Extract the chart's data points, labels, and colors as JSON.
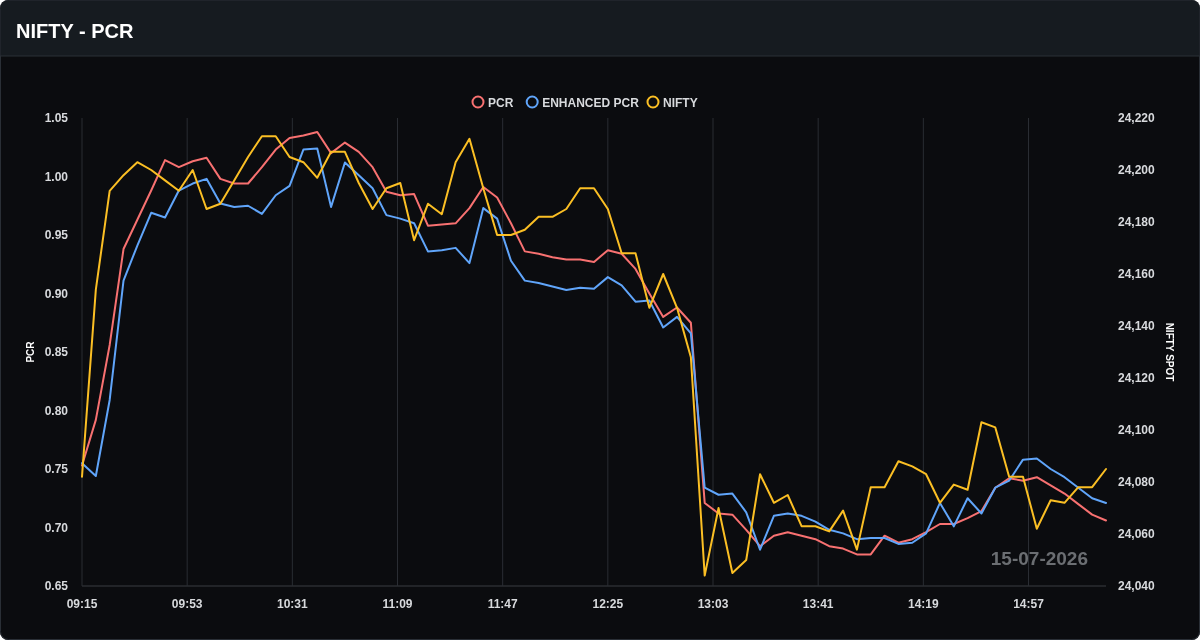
{
  "chart_data": {
    "type": "line",
    "title": "NIFTY - PCR",
    "ylabel": "PCR",
    "y2label": "NIFTY SPOT",
    "annotations": [
      "15-07-2026"
    ],
    "x": [
      9.25,
      9.3333,
      9.4167,
      9.5,
      9.5833,
      9.6667,
      9.75,
      9.8333,
      9.9167,
      10,
      10.0833,
      10.1667,
      10.25,
      10.3333,
      10.4167,
      10.5,
      10.5833,
      10.6667,
      10.75,
      10.8333,
      10.9167,
      11,
      11.0833,
      11.1667,
      11.25,
      11.3333,
      11.4167,
      11.5,
      11.5833,
      11.6667,
      11.75,
      11.8333,
      11.9167,
      12,
      12.0833,
      12.1667,
      12.25,
      12.3333,
      12.4167,
      12.5,
      12.5833,
      12.6667,
      12.75,
      12.8333,
      12.9167,
      13,
      13.0833,
      13.1667,
      13.25,
      13.3333,
      13.4167,
      13.5,
      13.5833,
      13.6667,
      13.75,
      13.8333,
      13.9167,
      14,
      14.0833,
      14.1667,
      14.25,
      14.3333,
      14.4167,
      14.5,
      14.5833,
      14.6667,
      14.75,
      14.8333,
      14.9167,
      15,
      15.0833,
      15.1667,
      15.25,
      15.3333,
      15.4167
    ],
    "series": [
      {
        "name": "PCR",
        "color": "#f87171",
        "values": [
          0.753,
          0.792,
          0.856,
          0.938,
          0.963,
          0.988,
          1.014,
          1.008,
          1.013,
          1.016,
          0.998,
          0.994,
          0.994,
          1.008,
          1.023,
          1.033,
          1.035,
          1.038,
          1.02,
          1.029,
          1.021,
          1.008,
          0.987,
          0.984,
          0.985,
          0.958,
          0.959,
          0.96,
          0.973,
          0.991,
          0.982,
          0.96,
          0.936,
          0.934,
          0.931,
          0.929,
          0.929,
          0.927,
          0.937,
          0.934,
          0.921,
          0.9,
          0.88,
          0.888,
          0.875,
          0.721,
          0.712,
          0.711,
          0.698,
          0.684,
          0.693,
          0.696,
          0.693,
          0.69,
          0.684,
          0.682,
          0.677,
          0.677,
          0.693,
          0.687,
          0.69,
          0.696,
          0.703,
          0.703,
          0.708,
          0.714,
          0.734,
          0.742,
          0.74,
          0.743,
          0.736,
          0.729,
          0.72,
          0.711,
          0.706
        ]
      },
      {
        "name": "ENHANCED PCR",
        "color": "#60a5fa",
        "values": [
          0.755,
          0.744,
          0.809,
          0.911,
          0.941,
          0.969,
          0.965,
          0.988,
          0.994,
          0.998,
          0.977,
          0.974,
          0.975,
          0.968,
          0.984,
          0.992,
          1.023,
          1.024,
          0.974,
          1.012,
          1.001,
          0.99,
          0.967,
          0.964,
          0.96,
          0.936,
          0.937,
          0.939,
          0.926,
          0.973,
          0.964,
          0.928,
          0.911,
          0.909,
          0.906,
          0.903,
          0.905,
          0.904,
          0.914,
          0.907,
          0.893,
          0.894,
          0.871,
          0.88,
          0.866,
          0.734,
          0.728,
          0.729,
          0.713,
          0.681,
          0.71,
          0.712,
          0.71,
          0.705,
          0.698,
          0.695,
          0.69,
          0.691,
          0.691,
          0.686,
          0.687,
          0.695,
          0.721,
          0.701,
          0.725,
          0.712,
          0.734,
          0.74,
          0.758,
          0.759,
          0.75,
          0.743,
          0.734,
          0.725,
          0.721
        ]
      },
      {
        "name": "NIFTY",
        "color": "#fbbf24",
        "axis": "y2",
        "values": [
          24082,
          24154,
          24192,
          24198,
          24203,
          24200,
          24196,
          24192,
          24200,
          24185,
          24187,
          24196,
          24205,
          24213,
          24213,
          24205,
          24203,
          24197,
          24207,
          24207,
          24195,
          24185,
          24193,
          24195,
          24173,
          24187,
          24183,
          24203,
          24212,
          24193,
          24175,
          24175,
          24177,
          24182,
          24182,
          24185,
          24193,
          24193,
          24185,
          24168,
          24168,
          24147,
          24160,
          24147,
          24128,
          24044,
          24070,
          24045,
          24050,
          24083,
          24072,
          24075,
          24063,
          24063,
          24061,
          24069,
          24054,
          24078,
          24078,
          24088,
          24086,
          24083,
          24072,
          24079,
          24077,
          24103,
          24101,
          24082,
          24082,
          24062,
          24073,
          24072,
          24078,
          24078,
          24085
        ]
      }
    ],
    "xlim": [
      9.25,
      15.4167
    ],
    "xticks": [
      {
        "value": 9.25,
        "label": "09:15"
      },
      {
        "value": 9.8833,
        "label": "09:53"
      },
      {
        "value": 10.5167,
        "label": "10:31"
      },
      {
        "value": 11.15,
        "label": "11:09"
      },
      {
        "value": 11.7833,
        "label": "11:47"
      },
      {
        "value": 12.4167,
        "label": "12:25"
      },
      {
        "value": 13.05,
        "label": "13:03"
      },
      {
        "value": 13.6833,
        "label": "13:41"
      },
      {
        "value": 14.3167,
        "label": "14:19"
      },
      {
        "value": 14.95,
        "label": "14:57"
      }
    ],
    "ylim": [
      0.65,
      1.05
    ],
    "yticks": [
      {
        "value": 0.65,
        "label": "0.65"
      },
      {
        "value": 0.7,
        "label": "0.70"
      },
      {
        "value": 0.75,
        "label": "0.75"
      },
      {
        "value": 0.8,
        "label": "0.80"
      },
      {
        "value": 0.85,
        "label": "0.85"
      },
      {
        "value": 0.9,
        "label": "0.90"
      },
      {
        "value": 0.95,
        "label": "0.95"
      },
      {
        "value": 1,
        "label": "1.00"
      },
      {
        "value": 1.05,
        "label": "1.05"
      }
    ],
    "y2lim": [
      24040,
      24220
    ],
    "y2ticks": [
      {
        "value": 24040,
        "label": "24,040"
      },
      {
        "value": 24060,
        "label": "24,060"
      },
      {
        "value": 24080,
        "label": "24,080"
      },
      {
        "value": 24100,
        "label": "24,100"
      },
      {
        "value": 24120,
        "label": "24,120"
      },
      {
        "value": 24140,
        "label": "24,140"
      },
      {
        "value": 24160,
        "label": "24,160"
      },
      {
        "value": 24180,
        "label": "24,180"
      },
      {
        "value": 24200,
        "label": "24,200"
      },
      {
        "value": 24220,
        "label": "24,220"
      }
    ],
    "grid": "x",
    "legend": "top",
    "marker": "none",
    "line_style": "solid"
  }
}
